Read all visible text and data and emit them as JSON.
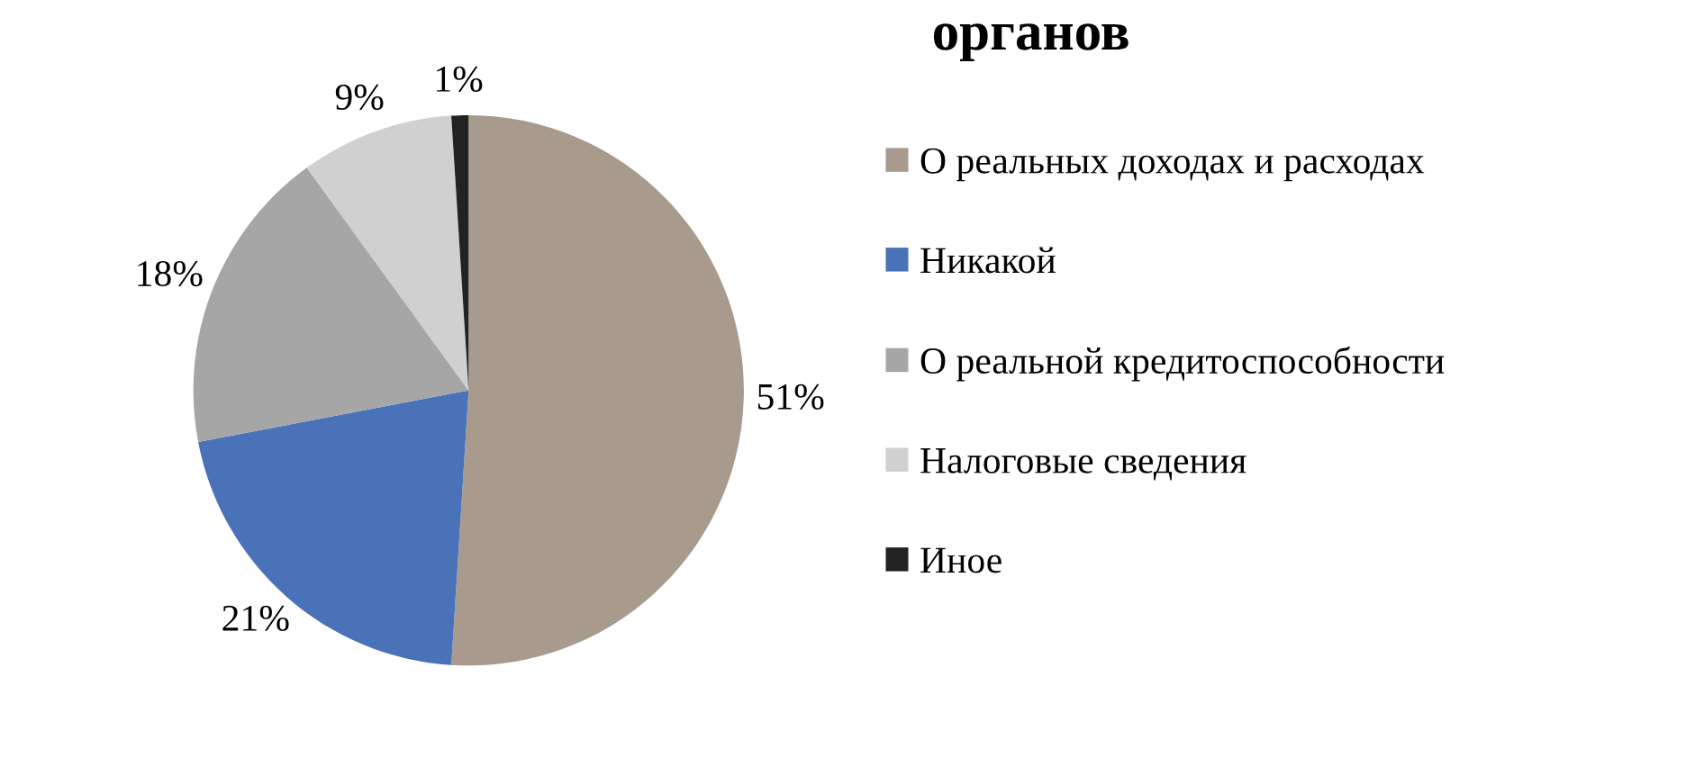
{
  "chart_data": {
    "type": "pie",
    "title": "органов",
    "categories": [
      "О реальных доходах и расходах",
      "Никакой",
      "О реальной кредитоспособности",
      "Налоговые сведения",
      "Иное"
    ],
    "values": [
      51,
      21,
      18,
      9,
      1
    ],
    "colors": [
      "#a89a8c",
      "#4a72b8",
      "#a6a6a6",
      "#d0d0d0",
      "#222222"
    ],
    "value_labels": [
      "51%",
      "21%",
      "18%",
      "9%",
      "1%"
    ],
    "legend": "right"
  }
}
